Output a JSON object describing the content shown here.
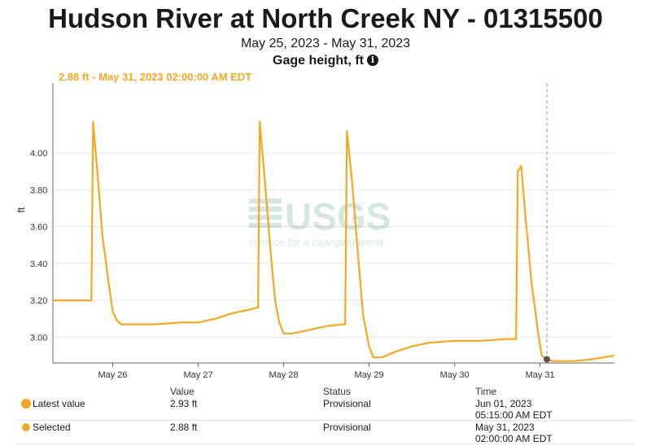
{
  "header": {
    "title": "Hudson River at North Creek NY - 01315500",
    "date_range": "May 25, 2023 - May 31, 2023",
    "parameter": "Gage height, ft",
    "info_icon": "info-icon"
  },
  "tooltip": "2.88 ft - May 31, 2023 02:00:00 AM EDT",
  "watermark": {
    "logo": "USGS",
    "tagline": "science for a changing world"
  },
  "colors": {
    "series": "#f5a623",
    "grid": "#e6e6e6",
    "axis": "#666666",
    "marker": "#555555"
  },
  "chart_data": {
    "type": "line",
    "ylabel": "ft",
    "xlabel": "",
    "ylim": [
      2.86,
      4.38
    ],
    "y_ticks": [
      3.0,
      3.2,
      3.4,
      3.6,
      3.8,
      4.0
    ],
    "y_tick_labels": [
      "3.00",
      "3.20",
      "3.40",
      "3.60",
      "3.80",
      "4.00"
    ],
    "xlim": [
      25.3,
      31.87
    ],
    "x_ticks": [
      26,
      27,
      28,
      29,
      30,
      31
    ],
    "x_tick_labels": [
      "May 26",
      "May 27",
      "May 28",
      "May 29",
      "May 30",
      "May 31"
    ],
    "grid": true,
    "cursor_x": 31.08,
    "selected_point": {
      "x": 31.08,
      "y": 2.88
    },
    "series": [
      {
        "x": [
          25.3,
          25.6,
          25.75,
          25.77,
          25.82,
          25.88,
          25.95,
          26.0,
          26.05,
          26.1,
          26.2,
          26.5,
          26.8,
          27.0,
          27.2,
          27.4,
          27.6,
          27.68,
          27.7,
          27.72,
          27.78,
          27.85,
          27.9,
          27.95,
          28.0,
          28.1,
          28.3,
          28.5,
          28.7,
          28.72,
          28.74,
          28.8,
          28.87,
          28.93,
          29.0,
          29.05,
          29.15,
          29.3,
          29.5,
          29.7,
          30.0,
          30.3,
          30.6,
          30.7,
          30.72,
          30.74,
          30.78,
          30.83,
          30.9,
          30.97,
          31.02,
          31.08,
          31.15,
          31.4,
          31.6,
          31.87
        ],
        "values": [
          3.2,
          3.2,
          3.2,
          4.17,
          3.9,
          3.55,
          3.3,
          3.14,
          3.09,
          3.07,
          3.07,
          3.07,
          3.08,
          3.08,
          3.1,
          3.13,
          3.15,
          3.16,
          3.16,
          4.17,
          3.85,
          3.45,
          3.2,
          3.08,
          3.02,
          3.02,
          3.04,
          3.06,
          3.07,
          3.07,
          4.12,
          3.85,
          3.45,
          3.12,
          2.95,
          2.89,
          2.89,
          2.92,
          2.95,
          2.97,
          2.98,
          2.98,
          2.99,
          2.99,
          2.99,
          3.9,
          3.93,
          3.65,
          3.3,
          3.05,
          2.9,
          2.88,
          2.87,
          2.87,
          2.88,
          2.9
        ]
      }
    ]
  },
  "legend_table": {
    "headers": {
      "value": "Value",
      "status": "Status",
      "time": "Time"
    },
    "rows": [
      {
        "label": "Latest value",
        "value": "2.93 ft",
        "status": "Provisional",
        "time_line1": "Jun 01, 2023",
        "time_line2": "05:15:00 AM EDT"
      },
      {
        "label": "Selected",
        "value": "2.88 ft",
        "status": "Provisional",
        "time_line1": "May 31, 2023",
        "time_line2": "02:00:00 AM EDT"
      }
    ]
  }
}
